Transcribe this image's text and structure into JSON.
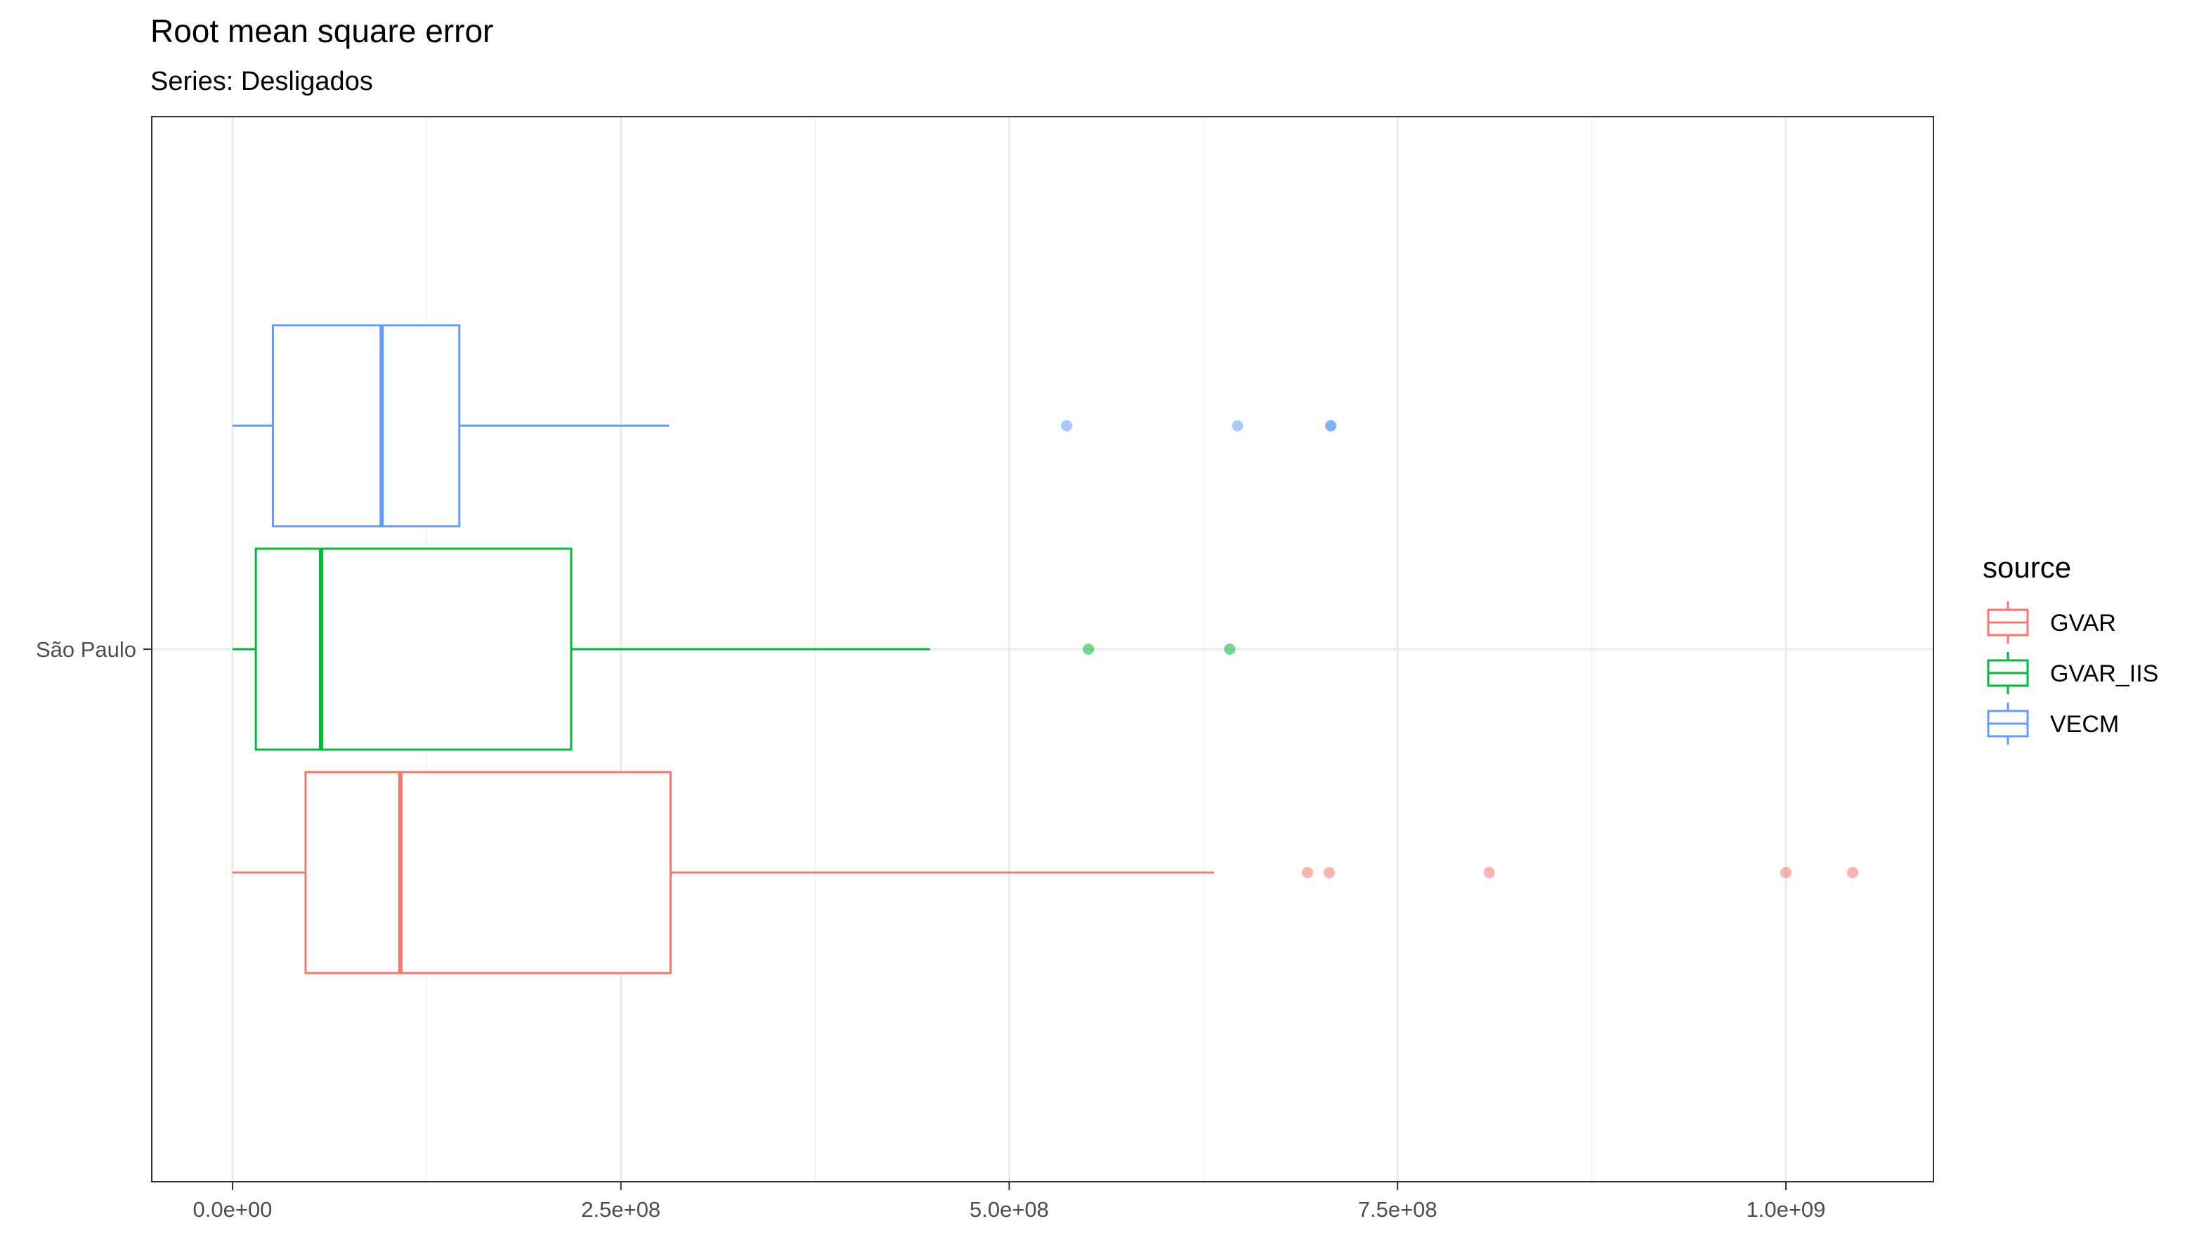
{
  "chart_data": {
    "type": "boxplot",
    "orientation": "horizontal",
    "title": "Root mean square error",
    "subtitle": "Series: Desligados",
    "xlabel": "",
    "ylabel": "",
    "xlim": [
      -52000000,
      1095000000
    ],
    "x_ticks": [
      0,
      250000000,
      500000000,
      750000000,
      1000000000
    ],
    "x_tick_labels": [
      "0.0e+00",
      "2.5e+08",
      "5.0e+08",
      "7.5e+08",
      "1.0e+09"
    ],
    "categories": [
      "São Paulo"
    ],
    "grid": true,
    "legend": {
      "title": "source",
      "position": "right",
      "entries": [
        "GVAR",
        "GVAR_IIS",
        "VECM"
      ]
    },
    "series": [
      {
        "name": "GVAR",
        "color": "#F8766D",
        "category": "São Paulo",
        "whisker_low": 0,
        "q1": 47000000,
        "median": 108000000,
        "q3": 282000000,
        "whisker_high": 632000000,
        "outliers": [
          692000000,
          706000000,
          809000000,
          1000000000,
          1043000000
        ]
      },
      {
        "name": "GVAR_IIS",
        "color": "#00BA38",
        "category": "São Paulo",
        "whisker_low": 0,
        "q1": 15000000,
        "median": 57000000,
        "q3": 218000000,
        "whisker_high": 449000000,
        "outliers": [
          551000000,
          642000000
        ]
      },
      {
        "name": "VECM",
        "color": "#619CFF",
        "category": "São Paulo",
        "whisker_low": 0,
        "q1": 26000000,
        "median": 96000000,
        "q3": 146000000,
        "whisker_high": 281000000,
        "outliers": [
          537000000,
          647000000,
          707000000,
          707000000
        ]
      }
    ]
  }
}
